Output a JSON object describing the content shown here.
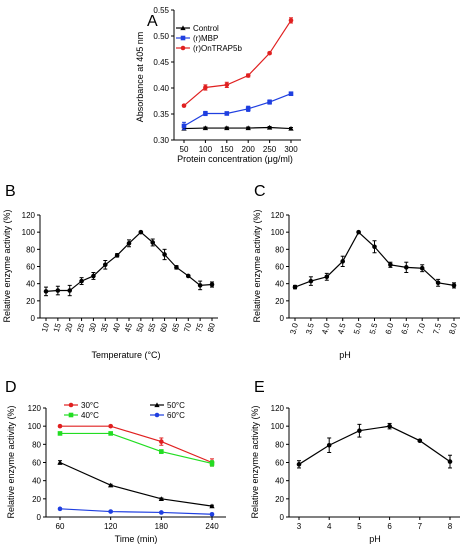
{
  "figure": {
    "panels": [
      {
        "letter": "A"
      },
      {
        "letter": "B"
      },
      {
        "letter": "C"
      },
      {
        "letter": "D"
      },
      {
        "letter": "E"
      }
    ]
  },
  "chart_data": [
    {
      "panel": "A",
      "type": "line",
      "xlabel": "Protein concentration (μg/ml)",
      "ylabel": "Absorbance at 405 nm",
      "x": [
        50,
        100,
        150,
        200,
        250,
        300
      ],
      "xticks": [
        "50",
        "100",
        "150",
        "200",
        "250",
        "300"
      ],
      "ylim": [
        0.3,
        0.55
      ],
      "yticks": [
        "0.30",
        "0.35",
        "0.40",
        "0.45",
        "0.50",
        "0.55"
      ],
      "legend_position": "top-left",
      "series": [
        {
          "name": "Control",
          "color": "#000000",
          "marker": "triangle",
          "values": [
            0.322,
            0.323,
            0.323,
            0.323,
            0.324,
            0.322
          ],
          "errors": [
            0.002,
            0.002,
            0.002,
            0.002,
            0.002,
            0.002
          ]
        },
        {
          "name": "(r)MBP",
          "color": "#1f3fe0",
          "marker": "square",
          "values": [
            0.327,
            0.351,
            0.351,
            0.36,
            0.373,
            0.389
          ],
          "errors": [
            0.007,
            0.004,
            0.003,
            0.005,
            0.004,
            0.003
          ]
        },
        {
          "name": "(r)OnTRAP5b",
          "color": "#e02020",
          "marker": "circle",
          "values": [
            0.366,
            0.401,
            0.406,
            0.424,
            0.467,
            0.53
          ],
          "errors": [
            0.002,
            0.005,
            0.005,
            0.003,
            0.002,
            0.005
          ]
        }
      ]
    },
    {
      "panel": "B",
      "type": "line",
      "xlabel": "Temperature (°C)",
      "ylabel": "Relative enzyme activity (%)",
      "x": [
        10,
        15,
        20,
        25,
        30,
        35,
        40,
        45,
        50,
        55,
        60,
        65,
        70,
        75,
        80
      ],
      "xticks": [
        "10",
        "15",
        "20",
        "25",
        "30",
        "35",
        "40",
        "45",
        "50",
        "55",
        "60",
        "65",
        "70",
        "75",
        "80"
      ],
      "ylim": [
        0,
        120
      ],
      "yticks": [
        "0",
        "20",
        "40",
        "60",
        "80",
        "100",
        "120"
      ],
      "series": [
        {
          "color": "#000000",
          "marker": "circle",
          "values": [
            31,
            32,
            32,
            43,
            49,
            62,
            73,
            87,
            100,
            88,
            74,
            59,
            49,
            38,
            39
          ],
          "errors": [
            5,
            5,
            6,
            4,
            4,
            5,
            2,
            4,
            1,
            4,
            6,
            2,
            1,
            5,
            3
          ]
        }
      ]
    },
    {
      "panel": "C",
      "type": "line",
      "xlabel": "pH",
      "ylabel": "Relative enzyme activity (%)",
      "x": [
        3.0,
        3.5,
        4.0,
        4.5,
        5.0,
        5.5,
        6.0,
        6.5,
        7.0,
        7.5,
        8.0
      ],
      "xticks": [
        "3.0",
        "3.5",
        "4.0",
        "4.5",
        "5.0",
        "5.5",
        "6.0",
        "6.5",
        "7.0",
        "7.5",
        "8.0"
      ],
      "ylim": [
        0,
        120
      ],
      "yticks": [
        "0",
        "20",
        "40",
        "60",
        "80",
        "100",
        "120"
      ],
      "series": [
        {
          "color": "#000000",
          "marker": "circle",
          "values": [
            36,
            43,
            48,
            66,
            100,
            83,
            62,
            59,
            58,
            41,
            38
          ],
          "errors": [
            2,
            5,
            4,
            6,
            1,
            7,
            3,
            6,
            4,
            4,
            3
          ]
        }
      ]
    },
    {
      "panel": "D",
      "type": "line",
      "xlabel": "Time (min)",
      "ylabel": "Relative enzyme activity (%)",
      "x": [
        60,
        120,
        180,
        240
      ],
      "xticks": [
        "60",
        "120",
        "180",
        "240"
      ],
      "ylim": [
        0,
        120
      ],
      "yticks": [
        "0",
        "20",
        "40",
        "60",
        "80",
        "100",
        "120"
      ],
      "legend_position": "top",
      "series": [
        {
          "name": "30°C",
          "color": "#e02020",
          "marker": "circle",
          "values": [
            100,
            100,
            83,
            60
          ],
          "errors": [
            1,
            1,
            4,
            4
          ]
        },
        {
          "name": "40°C",
          "color": "#22dd22",
          "marker": "square",
          "values": [
            92,
            92,
            72,
            59
          ],
          "errors": [
            1,
            1,
            2,
            3
          ]
        },
        {
          "name": "50°C",
          "color": "#000000",
          "marker": "triangle",
          "values": [
            60,
            35,
            20,
            12
          ],
          "errors": [
            2,
            1,
            1,
            1
          ]
        },
        {
          "name": "60°C",
          "color": "#1f3fe0",
          "marker": "circle",
          "values": [
            9,
            6,
            5,
            3
          ],
          "errors": [
            1,
            1,
            1,
            1
          ]
        }
      ]
    },
    {
      "panel": "E",
      "type": "line",
      "xlabel": "pH",
      "ylabel": "Relative enzyme activity (%)",
      "x": [
        3,
        4,
        5,
        6,
        7,
        8
      ],
      "xticks": [
        "3",
        "4",
        "5",
        "6",
        "7",
        "8"
      ],
      "ylim": [
        0,
        120
      ],
      "yticks": [
        "0",
        "20",
        "40",
        "60",
        "80",
        "100",
        "120"
      ],
      "series": [
        {
          "color": "#000000",
          "marker": "circle",
          "values": [
            58,
            79,
            95,
            100,
            84,
            61
          ],
          "errors": [
            4,
            8,
            7,
            3,
            1,
            7
          ]
        }
      ]
    }
  ]
}
